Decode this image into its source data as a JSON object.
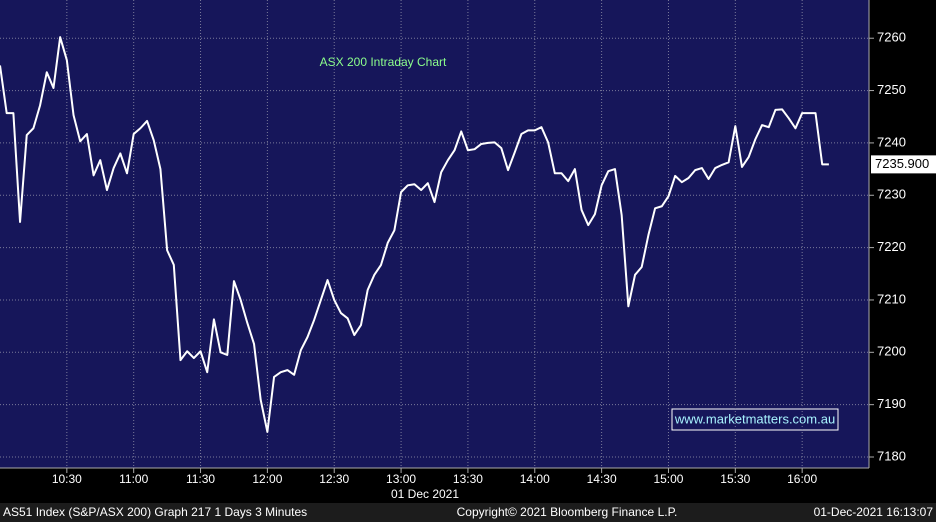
{
  "chart_data": {
    "type": "line",
    "title": "ASX 200 Intraday Chart",
    "watermark": "www.marketmatters.com.au",
    "x_label": "01 Dec 2021",
    "footer": [
      "AS51 Index (S&P/ASX 200) Graph 217 1 Days 3 Minutes",
      "Copyright© 2021 Bloomberg Finance L.P.",
      "01-Dec-2021 16:13:07"
    ],
    "x": [
      "10:00",
      "10:03",
      "10:06",
      "10:09",
      "10:12",
      "10:15",
      "10:18",
      "10:21",
      "10:24",
      "10:27",
      "10:30",
      "10:33",
      "10:36",
      "10:39",
      "10:42",
      "10:45",
      "10:48",
      "10:51",
      "10:54",
      "10:57",
      "11:00",
      "11:03",
      "11:06",
      "11:09",
      "11:12",
      "11:15",
      "11:18",
      "11:21",
      "11:24",
      "11:27",
      "11:30",
      "11:33",
      "11:36",
      "11:39",
      "11:42",
      "11:45",
      "11:48",
      "11:51",
      "11:54",
      "11:57",
      "12:00",
      "12:03",
      "12:06",
      "12:09",
      "12:12",
      "12:15",
      "12:18",
      "12:21",
      "12:24",
      "12:27",
      "12:30",
      "12:33",
      "12:36",
      "12:39",
      "12:42",
      "12:45",
      "12:48",
      "12:51",
      "12:54",
      "12:57",
      "13:00",
      "13:03",
      "13:06",
      "13:09",
      "13:12",
      "13:15",
      "13:18",
      "13:21",
      "13:24",
      "13:27",
      "13:30",
      "13:33",
      "13:36",
      "13:39",
      "13:42",
      "13:45",
      "13:48",
      "13:51",
      "13:54",
      "13:57",
      "14:00",
      "14:03",
      "14:06",
      "14:09",
      "14:12",
      "14:15",
      "14:18",
      "14:21",
      "14:24",
      "14:27",
      "14:30",
      "14:33",
      "14:36",
      "14:39",
      "14:42",
      "14:45",
      "14:48",
      "14:51",
      "14:54",
      "14:57",
      "15:00",
      "15:03",
      "15:06",
      "15:09",
      "15:12",
      "15:15",
      "15:18",
      "15:21",
      "15:24",
      "15:27",
      "15:30",
      "15:33",
      "15:36",
      "15:39",
      "15:42",
      "15:45",
      "15:48",
      "15:51",
      "15:54",
      "15:57",
      "16:00",
      "16:03",
      "16:06",
      "16:09",
      "16:12"
    ],
    "values": [
      7254.8,
      7245.7,
      7245.7,
      7224.9,
      7241.5,
      7242.8,
      7247.2,
      7253.5,
      7250.5,
      7260.2,
      7255.8,
      7245.3,
      7240.3,
      7241.7,
      7233.8,
      7236.7,
      7231.0,
      7235.2,
      7238.0,
      7234.2,
      7241.7,
      7242.8,
      7244.2,
      7240.5,
      7235.0,
      7219.5,
      7216.7,
      7198.5,
      7200.2,
      7198.9,
      7200.2,
      7196.2,
      7206.3,
      7200.0,
      7199.5,
      7213.6,
      7210.0,
      7205.6,
      7201.6,
      7190.9,
      7184.8,
      7195.3,
      7196.2,
      7196.6,
      7195.7,
      7200.4,
      7202.9,
      7206.2,
      7210.0,
      7213.8,
      7210.0,
      7207.5,
      7206.5,
      7203.3,
      7205.2,
      7211.9,
      7214.8,
      7216.7,
      7220.9,
      7223.3,
      7230.6,
      7231.9,
      7232.1,
      7231.0,
      7232.3,
      7228.7,
      7234.4,
      7236.7,
      7238.6,
      7242.2,
      7238.6,
      7238.8,
      7239.8,
      7240.0,
      7240.1,
      7239.0,
      7234.8,
      7238.2,
      7241.7,
      7242.4,
      7242.4,
      7243.0,
      7240.1,
      7234.2,
      7234.2,
      7232.7,
      7235.0,
      7227.2,
      7224.3,
      7226.4,
      7231.9,
      7234.6,
      7235.0,
      7226.2,
      7208.8,
      7214.8,
      7216.3,
      7222.4,
      7227.5,
      7227.9,
      7229.8,
      7233.7,
      7232.5,
      7233.3,
      7234.8,
      7235.2,
      7233.1,
      7235.2,
      7235.8,
      7236.3,
      7243.2,
      7235.4,
      7237.3,
      7240.7,
      7243.4,
      7243.0,
      7246.3,
      7246.4,
      7244.7,
      7242.8,
      7245.7,
      7245.7,
      7245.7,
      7235.9,
      7235.9
    ],
    "last_price": {
      "value": 7235.9,
      "label": "7235.900"
    },
    "color": "#ffffff",
    "xlim": [
      "10:00",
      "16:30"
    ],
    "xticks": [
      "10:30",
      "11:00",
      "11:30",
      "12:00",
      "12:30",
      "13:00",
      "13:30",
      "14:00",
      "14:30",
      "15:00",
      "15:30",
      "16:00"
    ],
    "ylim": [
      7177.9,
      7267.3
    ],
    "yticks": [
      7180,
      7190,
      7200,
      7210,
      7220,
      7230,
      7240,
      7250,
      7260
    ],
    "grid": true
  }
}
